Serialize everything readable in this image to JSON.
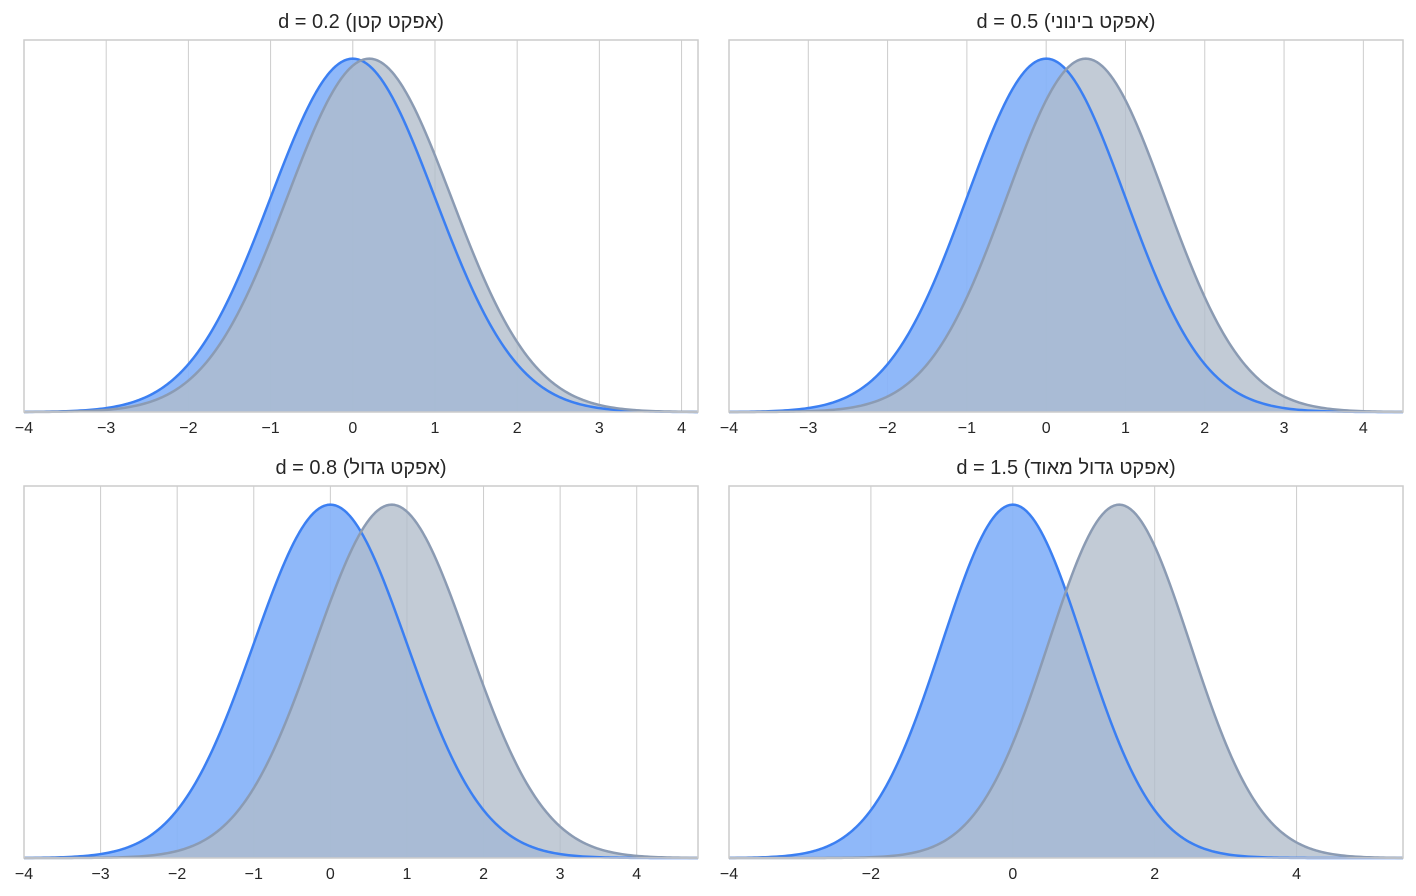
{
  "colors": {
    "series_a": "#3b7ff2",
    "series_a_fill": "#86b2f9",
    "series_b": "#8b9bb3",
    "series_b_fill": "#b1bcca",
    "grid": "#cccccc",
    "frame": "#cccccc",
    "text": "#262626"
  },
  "chart_data": [
    {
      "type": "area",
      "title": "d = 0.2  (אפקט קטן)",
      "xlabel": "",
      "ylabel": "",
      "xlim": [
        -4,
        4.2
      ],
      "ylim": [
        0,
        0.42
      ],
      "xticks": [
        -4,
        -3,
        -2,
        -1,
        0,
        1,
        2,
        3,
        4
      ],
      "xtick_labels": [
        "−4",
        "−3",
        "−2",
        "−1",
        "0",
        "1",
        "2",
        "3",
        "4"
      ],
      "grid": "vertical",
      "series": [
        {
          "distribution": "normal",
          "mean": 0,
          "sd": 1
        },
        {
          "distribution": "normal",
          "mean": 0.2,
          "sd": 1
        }
      ]
    },
    {
      "type": "area",
      "title": "d = 0.5  (אפקט בינוני)",
      "xlabel": "",
      "ylabel": "",
      "xlim": [
        -4,
        4.5
      ],
      "ylim": [
        0,
        0.42
      ],
      "xticks": [
        -4,
        -3,
        -2,
        -1,
        0,
        1,
        2,
        3,
        4
      ],
      "xtick_labels": [
        "−4",
        "−3",
        "−2",
        "−1",
        "0",
        "1",
        "2",
        "3",
        "4"
      ],
      "grid": "vertical",
      "series": [
        {
          "distribution": "normal",
          "mean": 0,
          "sd": 1
        },
        {
          "distribution": "normal",
          "mean": 0.5,
          "sd": 1
        }
      ]
    },
    {
      "type": "area",
      "title": "d = 0.8  (אפקט גדול)",
      "xlabel": "",
      "ylabel": "",
      "xlim": [
        -4,
        4.8
      ],
      "ylim": [
        0,
        0.42
      ],
      "xticks": [
        -4,
        -3,
        -2,
        -1,
        0,
        1,
        2,
        3,
        4
      ],
      "xtick_labels": [
        "−4",
        "−3",
        "−2",
        "−1",
        "0",
        "1",
        "2",
        "3",
        "4"
      ],
      "grid": "vertical",
      "series": [
        {
          "distribution": "normal",
          "mean": 0,
          "sd": 1
        },
        {
          "distribution": "normal",
          "mean": 0.8,
          "sd": 1
        }
      ]
    },
    {
      "type": "area",
      "title": "d = 1.5  (אפקט גדול מאוד)",
      "xlabel": "",
      "ylabel": "",
      "xlim": [
        -4,
        5.5
      ],
      "ylim": [
        0,
        0.42
      ],
      "xticks": [
        -4,
        -2,
        0,
        2,
        4
      ],
      "xtick_labels": [
        "−4",
        "−2",
        "0",
        "2",
        "4"
      ],
      "grid": "vertical",
      "series": [
        {
          "distribution": "normal",
          "mean": 0,
          "sd": 1
        },
        {
          "distribution": "normal",
          "mean": 1.5,
          "sd": 1
        }
      ]
    }
  ]
}
